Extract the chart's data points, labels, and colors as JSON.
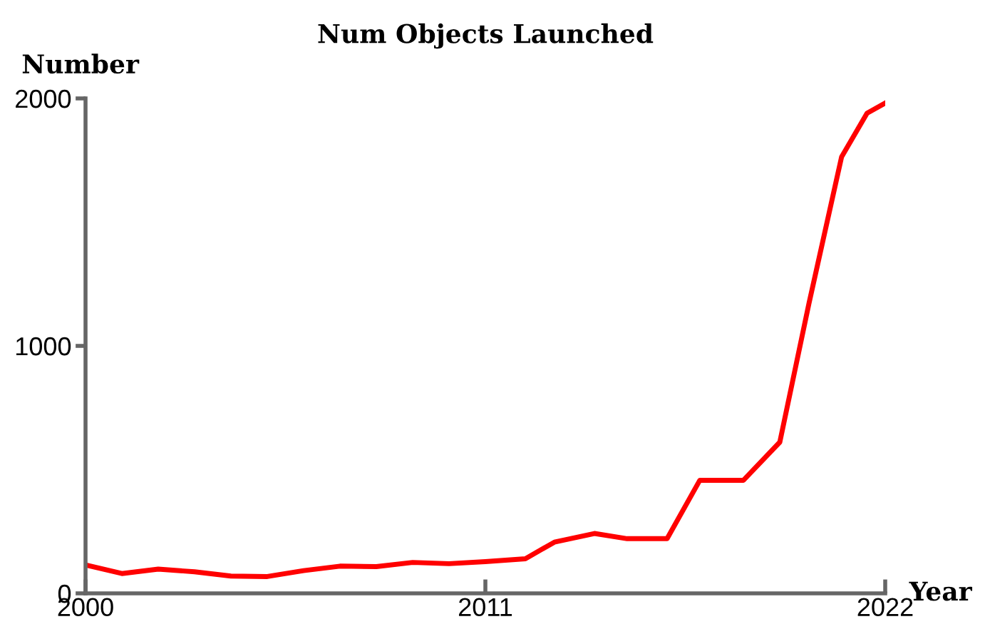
{
  "chart_data": {
    "type": "line",
    "title": "Num Objects Launched",
    "xlabel": "Year",
    "ylabel": "Number",
    "x": [
      2000,
      2001,
      2002,
      2003,
      2004,
      2005,
      2006,
      2007,
      2008,
      2009,
      2010,
      2011,
      2012.1,
      2012.9,
      2014,
      2014.9,
      2016,
      2016.9,
      2018.1,
      2019.1,
      2019.9,
      2020.8,
      2021.5,
      2022
    ],
    "series": [
      {
        "color": "#ff0000",
        "values": [
          115,
          80,
          98,
          87,
          70,
          68,
          92,
          110,
          108,
          125,
          120,
          128,
          140,
          207,
          242,
          221,
          221,
          457,
          457,
          611,
          1170,
          1764,
          1940,
          1981
        ]
      }
    ],
    "xlim": [
      2000,
      2022
    ],
    "xticks": [
      2000,
      2011,
      2022
    ],
    "ylim": [
      0,
      2000
    ],
    "yticks": [
      0,
      1000,
      2000
    ],
    "grid": false,
    "legend": false,
    "marker": "none",
    "line_style": "solid"
  }
}
